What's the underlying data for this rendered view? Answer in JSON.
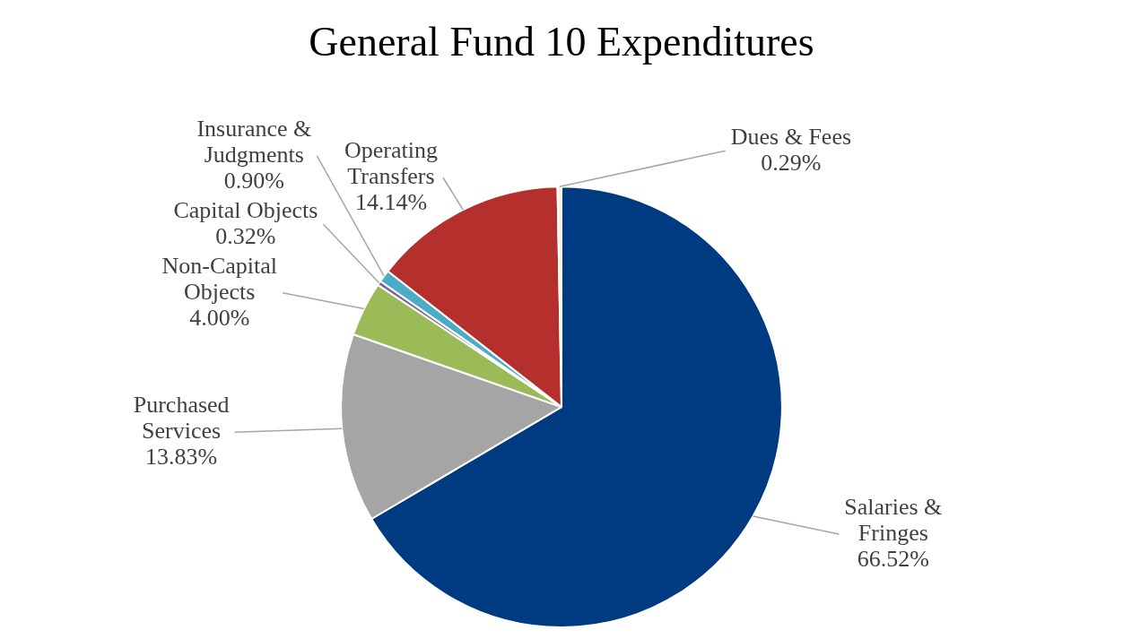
{
  "chart_data": {
    "type": "pie",
    "title": "General Fund 10 Expenditures",
    "categories": [
      "Salaries & Fringes",
      "Purchased Services",
      "Non-Capital Objects",
      "Capital Objects",
      "Insurance & Judgments",
      "Operating Transfers",
      "Dues & Fees"
    ],
    "values": [
      66.52,
      13.83,
      4.0,
      0.32,
      0.9,
      14.14,
      0.29
    ],
    "colors": [
      "#003a80",
      "#a5a5a5",
      "#9bbb59",
      "#7f63a1",
      "#4bacc6",
      "#b5302c",
      "#f2f2f2"
    ],
    "value_labels": [
      "66.52%",
      "13.83%",
      "4.00%",
      "0.32%",
      "0.90%",
      "14.14%",
      "0.29%"
    ]
  }
}
